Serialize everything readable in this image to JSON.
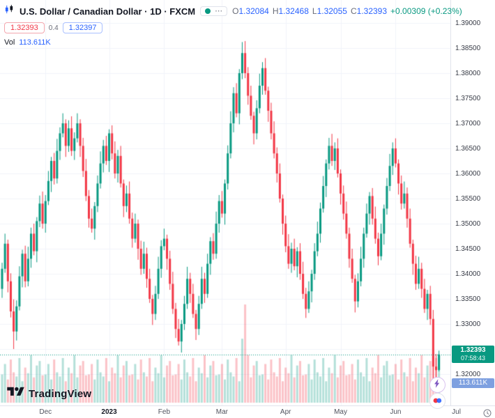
{
  "header": {
    "title_full": "U.S. Dollar / Canadian Dollar · 1D · FXCM",
    "ohlc": {
      "o_label": "O",
      "o_value": "1.32084",
      "h_label": "H",
      "h_value": "1.32468",
      "l_label": "L",
      "l_value": "1.32055",
      "c_label": "C",
      "c_value": "1.32393",
      "change": "+0.00309 (+0.23%)"
    },
    "bid": "1.32393",
    "spread": "0.4",
    "ask": "1.32397",
    "volume_label": "Vol",
    "volume_value": "113.611K"
  },
  "price_axis": {
    "labels": [
      "1.39000",
      "1.38500",
      "1.38000",
      "1.37500",
      "1.37000",
      "1.36500",
      "1.36000",
      "1.35500",
      "1.35000",
      "1.34500",
      "1.34000",
      "1.33500",
      "1.33000",
      "1.32500",
      "1.32000"
    ],
    "last_price": "1.32393",
    "countdown": "07:58:43",
    "volume_badge": "113.611K"
  },
  "footer": {
    "logo_text": "TradingView"
  },
  "icons": {
    "more_options": "⋯"
  },
  "colors": {
    "up": "#089981",
    "down": "#f23645",
    "vol_up": "rgba(8,153,129,0.30)",
    "vol_down": "rgba(242,54,69,0.30)",
    "grid": "#f0f3fa",
    "accent_blue": "#2962ff"
  },
  "chart_data": {
    "type": "candlestick",
    "symbol": "USD/CAD",
    "interval": "1D",
    "exchange": "FXCM",
    "price_axis_range": [
      1.3165,
      1.3945
    ],
    "grid_step": 0.005,
    "last_close": 1.32393,
    "last_volume_k": 113.611,
    "time_ticks": [
      {
        "label": "Dec",
        "index": 15
      },
      {
        "label": "2023",
        "index": 37,
        "bold": true
      },
      {
        "label": "Feb",
        "index": 56
      },
      {
        "label": "Mar",
        "index": 76
      },
      {
        "label": "Apr",
        "index": 98
      },
      {
        "label": "May",
        "index": 117
      },
      {
        "label": "Jun",
        "index": 136
      },
      {
        "label": "Jul",
        "index": 157
      }
    ],
    "candles": [
      [
        1.337,
        1.3422,
        1.3352,
        1.341,
        95
      ],
      [
        1.341,
        1.348,
        1.3402,
        1.346,
        130
      ],
      [
        1.346,
        1.3468,
        1.3363,
        1.3385,
        78
      ],
      [
        1.3385,
        1.3401,
        1.3313,
        1.3325,
        145
      ],
      [
        1.3325,
        1.3349,
        1.325,
        1.3285,
        102
      ],
      [
        1.3285,
        1.3347,
        1.3267,
        1.3335,
        88
      ],
      [
        1.3335,
        1.3415,
        1.3327,
        1.3395,
        150
      ],
      [
        1.3395,
        1.3448,
        1.3373,
        1.344,
        72
      ],
      [
        1.344,
        1.3456,
        1.3373,
        1.3385,
        118
      ],
      [
        1.3385,
        1.3454,
        1.3375,
        1.343,
        99
      ],
      [
        1.343,
        1.3492,
        1.3412,
        1.348,
        160
      ],
      [
        1.348,
        1.35,
        1.3437,
        1.3445,
        85
      ],
      [
        1.3445,
        1.3513,
        1.3423,
        1.3505,
        125
      ],
      [
        1.3505,
        1.3556,
        1.3493,
        1.354,
        140
      ],
      [
        1.354,
        1.3564,
        1.349,
        1.35,
        92
      ],
      [
        1.35,
        1.3557,
        1.3482,
        1.3545,
        95
      ],
      [
        1.3545,
        1.3605,
        1.3537,
        1.3585,
        130
      ],
      [
        1.3585,
        1.3633,
        1.3563,
        1.3625,
        78
      ],
      [
        1.3625,
        1.3641,
        1.3578,
        1.359,
        145
      ],
      [
        1.359,
        1.3669,
        1.358,
        1.3645,
        102
      ],
      [
        1.3645,
        1.3692,
        1.3627,
        1.368,
        88
      ],
      [
        1.368,
        1.372,
        1.3672,
        1.37,
        150
      ],
      [
        1.37,
        1.3708,
        1.3633,
        1.3655,
        72
      ],
      [
        1.3655,
        1.3706,
        1.3643,
        1.369,
        118
      ],
      [
        1.369,
        1.3714,
        1.3635,
        1.3645,
        99
      ],
      [
        1.3645,
        1.3682,
        1.3627,
        1.367,
        160
      ],
      [
        1.367,
        1.372,
        1.3662,
        1.37,
        85
      ],
      [
        1.37,
        1.3708,
        1.3633,
        1.3655,
        125
      ],
      [
        1.3655,
        1.3671,
        1.3593,
        1.3605,
        140
      ],
      [
        1.3605,
        1.3629,
        1.3545,
        1.3555,
        92
      ],
      [
        1.3555,
        1.3567,
        1.3492,
        1.351,
        95
      ],
      [
        1.351,
        1.353,
        1.3482,
        1.349,
        130
      ],
      [
        1.349,
        1.3543,
        1.3468,
        1.3535,
        78
      ],
      [
        1.3535,
        1.3596,
        1.3523,
        1.358,
        145
      ],
      [
        1.358,
        1.3644,
        1.357,
        1.362,
        102
      ],
      [
        1.362,
        1.3667,
        1.3602,
        1.3655,
        88
      ],
      [
        1.3655,
        1.3675,
        1.3617,
        1.3625,
        150
      ],
      [
        1.3625,
        1.3688,
        1.3603,
        1.368,
        72
      ],
      [
        1.368,
        1.3696,
        1.3628,
        1.364,
        118
      ],
      [
        1.364,
        1.3664,
        1.359,
        1.36,
        99
      ],
      [
        1.36,
        1.3647,
        1.3582,
        1.3635,
        160
      ],
      [
        1.3635,
        1.3655,
        1.3572,
        1.358,
        85
      ],
      [
        1.358,
        1.3588,
        1.3513,
        1.3535,
        125
      ],
      [
        1.3535,
        1.3576,
        1.3523,
        1.356,
        140
      ],
      [
        1.356,
        1.3584,
        1.35,
        1.351,
        92
      ],
      [
        1.351,
        1.3522,
        1.3452,
        1.347,
        95
      ],
      [
        1.347,
        1.352,
        1.3462,
        1.35,
        130
      ],
      [
        1.35,
        1.3508,
        1.3428,
        1.345,
        78
      ],
      [
        1.345,
        1.3466,
        1.3398,
        1.341,
        145
      ],
      [
        1.341,
        1.3464,
        1.34,
        1.344,
        102
      ],
      [
        1.344,
        1.3452,
        1.3372,
        1.339,
        88
      ],
      [
        1.339,
        1.341,
        1.3342,
        1.335,
        150
      ],
      [
        1.335,
        1.3358,
        1.3298,
        1.332,
        72
      ],
      [
        1.332,
        1.3376,
        1.3308,
        1.336,
        118
      ],
      [
        1.336,
        1.3434,
        1.335,
        1.341,
        99
      ],
      [
        1.341,
        1.3467,
        1.3392,
        1.3455,
        160
      ],
      [
        1.3455,
        1.349,
        1.3447,
        1.347,
        85
      ],
      [
        1.347,
        1.3478,
        1.3408,
        1.343,
        125
      ],
      [
        1.343,
        1.3446,
        1.3368,
        1.338,
        140
      ],
      [
        1.338,
        1.3404,
        1.332,
        1.333,
        92
      ],
      [
        1.333,
        1.3342,
        1.3272,
        1.329,
        95
      ],
      [
        1.329,
        1.331,
        1.3257,
        1.3265,
        130
      ],
      [
        1.3265,
        1.3308,
        1.3243,
        1.33,
        78
      ],
      [
        1.33,
        1.3356,
        1.3288,
        1.334,
        145
      ],
      [
        1.334,
        1.3414,
        1.333,
        1.339,
        102
      ],
      [
        1.339,
        1.3402,
        1.3342,
        1.336,
        88
      ],
      [
        1.336,
        1.338,
        1.3312,
        1.332,
        150
      ],
      [
        1.332,
        1.3328,
        1.3268,
        1.329,
        72
      ],
      [
        1.329,
        1.3356,
        1.3278,
        1.334,
        118
      ],
      [
        1.334,
        1.3414,
        1.333,
        1.339,
        99
      ],
      [
        1.339,
        1.3402,
        1.3342,
        1.336,
        160
      ],
      [
        1.336,
        1.344,
        1.3352,
        1.342,
        85
      ],
      [
        1.342,
        1.3473,
        1.3398,
        1.3465,
        125
      ],
      [
        1.3465,
        1.3481,
        1.3428,
        1.344,
        140
      ],
      [
        1.344,
        1.3524,
        1.343,
        1.35,
        92
      ],
      [
        1.35,
        1.3557,
        1.3482,
        1.3545,
        95
      ],
      [
        1.3545,
        1.3565,
        1.3512,
        1.352,
        130
      ],
      [
        1.352,
        1.3588,
        1.3498,
        1.358,
        78
      ],
      [
        1.358,
        1.3656,
        1.3568,
        1.364,
        145
      ],
      [
        1.364,
        1.3724,
        1.363,
        1.37,
        102
      ],
      [
        1.37,
        1.3772,
        1.3682,
        1.376,
        88
      ],
      [
        1.376,
        1.378,
        1.3712,
        1.372,
        150
      ],
      [
        1.372,
        1.3808,
        1.3698,
        1.38,
        72
      ],
      [
        1.38,
        1.3862,
        1.3788,
        1.384,
        215
      ],
      [
        1.384,
        1.3864,
        1.379,
        1.38,
        330
      ],
      [
        1.38,
        1.3812,
        1.3737,
        1.3755,
        160
      ],
      [
        1.3755,
        1.3775,
        1.3707,
        1.3715,
        85
      ],
      [
        1.3715,
        1.3723,
        1.3658,
        1.368,
        125
      ],
      [
        1.368,
        1.3746,
        1.3668,
        1.373,
        140
      ],
      [
        1.373,
        1.3799,
        1.372,
        1.3775,
        92
      ],
      [
        1.3775,
        1.3822,
        1.3757,
        1.381,
        95
      ],
      [
        1.381,
        1.383,
        1.3757,
        1.3765,
        130
      ],
      [
        1.3765,
        1.3773,
        1.3703,
        1.3725,
        78
      ],
      [
        1.3725,
        1.3741,
        1.3668,
        1.368,
        145
      ],
      [
        1.368,
        1.3704,
        1.363,
        1.364,
        102
      ],
      [
        1.364,
        1.3652,
        1.3582,
        1.36,
        88
      ],
      [
        1.36,
        1.362,
        1.3542,
        1.355,
        150
      ],
      [
        1.355,
        1.3558,
        1.3478,
        1.35,
        72
      ],
      [
        1.35,
        1.3516,
        1.3443,
        1.3455,
        118
      ],
      [
        1.3455,
        1.3479,
        1.341,
        1.342,
        99
      ],
      [
        1.342,
        1.3462,
        1.3402,
        1.345,
        160
      ],
      [
        1.345,
        1.347,
        1.3407,
        1.3415,
        85
      ],
      [
        1.3415,
        1.3453,
        1.3393,
        1.3445,
        125
      ],
      [
        1.3445,
        1.3461,
        1.3388,
        1.34,
        140
      ],
      [
        1.34,
        1.3424,
        1.335,
        1.336,
        92
      ],
      [
        1.336,
        1.3372,
        1.3312,
        1.333,
        95
      ],
      [
        1.333,
        1.3385,
        1.3322,
        1.3365,
        130
      ],
      [
        1.3365,
        1.3408,
        1.3343,
        1.34,
        78
      ],
      [
        1.34,
        1.3461,
        1.3388,
        1.3445,
        145
      ],
      [
        1.3445,
        1.3504,
        1.3435,
        1.348,
        102
      ],
      [
        1.348,
        1.3542,
        1.3462,
        1.353,
        88
      ],
      [
        1.353,
        1.3595,
        1.3522,
        1.3575,
        150
      ],
      [
        1.3575,
        1.3628,
        1.3553,
        1.362,
        72
      ],
      [
        1.362,
        1.3671,
        1.3608,
        1.3655,
        118
      ],
      [
        1.3655,
        1.3679,
        1.3615,
        1.3625,
        99
      ],
      [
        1.3625,
        1.3662,
        1.3607,
        1.365,
        160
      ],
      [
        1.365,
        1.367,
        1.3592,
        1.36,
        85
      ],
      [
        1.36,
        1.3608,
        1.3538,
        1.356,
        125
      ],
      [
        1.356,
        1.3576,
        1.3508,
        1.352,
        140
      ],
      [
        1.352,
        1.3544,
        1.347,
        1.348,
        92
      ],
      [
        1.348,
        1.3492,
        1.3412,
        1.343,
        95
      ],
      [
        1.343,
        1.345,
        1.3382,
        1.339,
        130
      ],
      [
        1.339,
        1.3398,
        1.3323,
        1.3345,
        78
      ],
      [
        1.3345,
        1.3401,
        1.3333,
        1.3385,
        145
      ],
      [
        1.3385,
        1.3454,
        1.3375,
        1.343,
        102
      ],
      [
        1.343,
        1.3492,
        1.3412,
        1.348,
        88
      ],
      [
        1.348,
        1.354,
        1.3472,
        1.352,
        150
      ],
      [
        1.352,
        1.3563,
        1.3498,
        1.3555,
        72
      ],
      [
        1.3555,
        1.3571,
        1.3498,
        1.351,
        118
      ],
      [
        1.351,
        1.3534,
        1.346,
        1.347,
        99
      ],
      [
        1.347,
        1.3482,
        1.3417,
        1.3435,
        160
      ],
      [
        1.3435,
        1.35,
        1.3427,
        1.348,
        85
      ],
      [
        1.348,
        1.3538,
        1.3458,
        1.353,
        125
      ],
      [
        1.353,
        1.3591,
        1.3518,
        1.3575,
        140
      ],
      [
        1.3575,
        1.3639,
        1.3565,
        1.3615,
        92
      ],
      [
        1.3615,
        1.3662,
        1.3597,
        1.365,
        95
      ],
      [
        1.365,
        1.367,
        1.3612,
        1.362,
        130
      ],
      [
        1.362,
        1.3628,
        1.3558,
        1.358,
        78
      ],
      [
        1.358,
        1.3596,
        1.3528,
        1.354,
        145
      ],
      [
        1.354,
        1.3584,
        1.353,
        1.356,
        102
      ],
      [
        1.356,
        1.3572,
        1.3492,
        1.351,
        88
      ],
      [
        1.351,
        1.353,
        1.3452,
        1.346,
        150
      ],
      [
        1.346,
        1.3468,
        1.3398,
        1.342,
        72
      ],
      [
        1.342,
        1.3436,
        1.3368,
        1.338,
        118
      ],
      [
        1.338,
        1.3434,
        1.337,
        1.341,
        99
      ],
      [
        1.341,
        1.3422,
        1.3352,
        1.337,
        160
      ],
      [
        1.337,
        1.339,
        1.3322,
        1.333,
        85
      ],
      [
        1.333,
        1.3368,
        1.3308,
        1.336,
        125
      ],
      [
        1.336,
        1.3376,
        1.3298,
        1.331,
        140
      ],
      [
        1.331,
        1.3328,
        1.3185,
        1.3215,
        165
      ],
      [
        1.3215,
        1.324,
        1.3183,
        1.3208,
        150
      ],
      [
        1.32084,
        1.32468,
        1.32055,
        1.32393,
        113.611
      ]
    ]
  }
}
